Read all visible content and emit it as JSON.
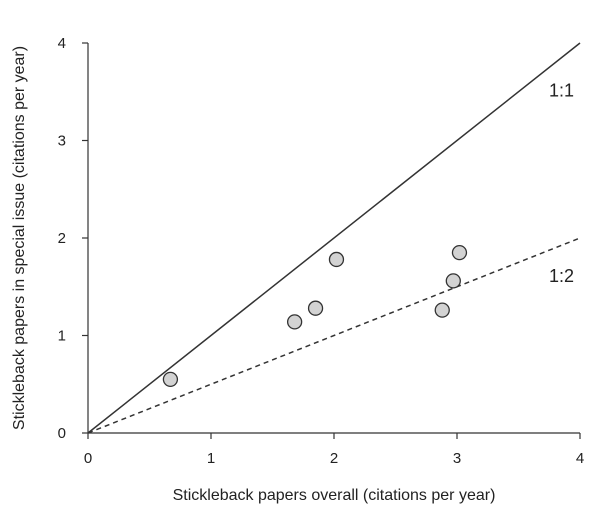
{
  "chart_data": {
    "type": "scatter",
    "title": "",
    "xlabel": "Stickleback papers overall (citations per year)",
    "ylabel": "Stickleback papers in special issue (citations per year)",
    "xlim": [
      0,
      4
    ],
    "ylim": [
      0,
      4
    ],
    "xticks": [
      "0",
      "1",
      "2",
      "3",
      "4"
    ],
    "yticks": [
      "0",
      "1",
      "2",
      "3",
      "4"
    ],
    "grid": false,
    "legend": "none",
    "points": [
      {
        "x": 0.67,
        "y": 0.55
      },
      {
        "x": 1.68,
        "y": 1.14
      },
      {
        "x": 1.85,
        "y": 1.28
      },
      {
        "x": 2.02,
        "y": 1.78
      },
      {
        "x": 2.88,
        "y": 1.26
      },
      {
        "x": 2.97,
        "y": 1.56
      },
      {
        "x": 3.02,
        "y": 1.85
      }
    ],
    "reference_lines": [
      {
        "label": "1:1",
        "slope": 1,
        "style": "solid"
      },
      {
        "label": "1:2",
        "slope": 0.5,
        "style": "dashed"
      }
    ],
    "colors": {
      "point_fill": "#d3d3d3",
      "point_stroke": "#333333",
      "line": "#333333"
    }
  }
}
